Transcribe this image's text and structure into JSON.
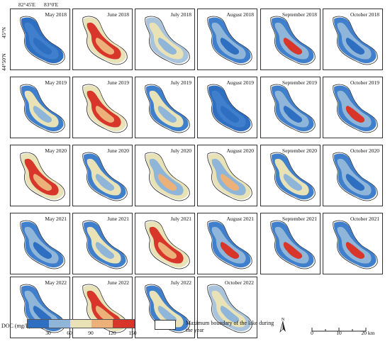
{
  "coordinates": {
    "lon1": "82°45'E",
    "lon2": "83°0'E",
    "lat1": "45°N",
    "lat2": "44°50'N"
  },
  "panels": [
    {
      "label": "May 2018",
      "scheme": "blue_full"
    },
    {
      "label": "June 2018",
      "scheme": "red_mixed"
    },
    {
      "label": "July 2018",
      "scheme": "pale_blue"
    },
    {
      "label": "August 2018",
      "scheme": "blue_mixed"
    },
    {
      "label": "September 2018",
      "scheme": "blue_red_edge"
    },
    {
      "label": "October 2018",
      "scheme": "blue_mixed"
    },
    {
      "label": "May 2019",
      "scheme": "blue_yellow"
    },
    {
      "label": "June 2019",
      "scheme": "red_mixed"
    },
    {
      "label": "July 2019",
      "scheme": "blue_yellow"
    },
    {
      "label": "August 2019",
      "scheme": "blue_full"
    },
    {
      "label": "September 2019",
      "scheme": "blue_mixed"
    },
    {
      "label": "October 2019",
      "scheme": "blue_red_edge"
    },
    {
      "label": "May 2020",
      "scheme": "red_mixed"
    },
    {
      "label": "June 2020",
      "scheme": "blue_yellow"
    },
    {
      "label": "July 2020",
      "scheme": "yellow_mixed"
    },
    {
      "label": "August 2020",
      "scheme": "yellow_mixed"
    },
    {
      "label": "September 2020",
      "scheme": "blue_yellow"
    },
    {
      "label": "October 2020",
      "scheme": "blue_mixed"
    },
    {
      "label": "May 2021",
      "scheme": "blue_mixed"
    },
    {
      "label": "June 2021",
      "scheme": "blue_yellow"
    },
    {
      "label": "July 2021",
      "scheme": "red_mixed"
    },
    {
      "label": "August 2021",
      "scheme": "blue_red_edge"
    },
    {
      "label": "September 2021",
      "scheme": "blue_red_edge"
    },
    {
      "label": "October 2021",
      "scheme": "blue_red_edge"
    },
    {
      "label": "May 2022",
      "scheme": "blue_mixed"
    },
    {
      "label": "June 2022",
      "scheme": "red_mixed"
    },
    {
      "label": "July 2022",
      "scheme": "blue_yellow"
    },
    {
      "label": "October 2022",
      "scheme": "pale_blue"
    }
  ],
  "legend": {
    "title": "DOC (mg/L)",
    "ticks": [
      "30",
      "60",
      "90",
      "120",
      "150"
    ],
    "colors": [
      "#2e6fc2",
      "#8fb6d9",
      "#e8e2b6",
      "#ecb079",
      "#d8362a"
    ],
    "boundary_label": "Maximum boundary of the lake during the year"
  },
  "scale_bar": {
    "ticks": [
      "0",
      "10",
      "20 km"
    ]
  },
  "north_arrow": "N"
}
